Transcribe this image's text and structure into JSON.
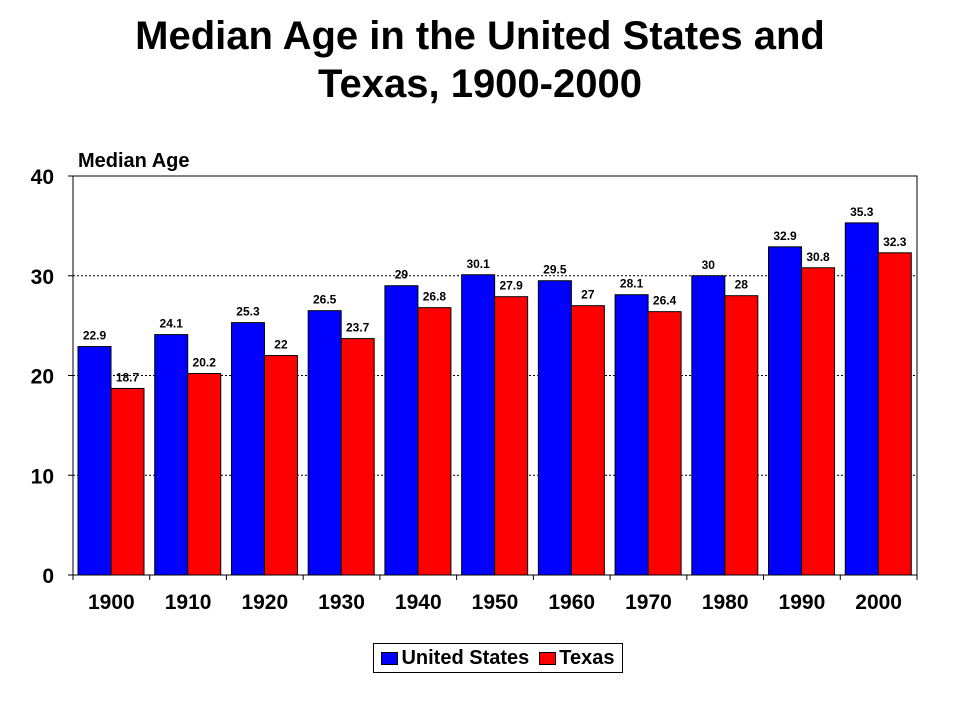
{
  "title_line1": "Median Age in the United States and",
  "title_line2": "Texas, 1900-2000",
  "chart_data": {
    "type": "bar",
    "title": "Median Age in the United States and Texas, 1900-2000",
    "ylabel": "Median Age",
    "xlabel": "",
    "ylim": [
      0,
      40
    ],
    "yticks": [
      0,
      10,
      20,
      30,
      40
    ],
    "grid": "dotted horizontal lines at 10, 20, 30",
    "legend_position": "bottom-center",
    "categories": [
      "1900",
      "1910",
      "1920",
      "1930",
      "1940",
      "1950",
      "1960",
      "1970",
      "1980",
      "1990",
      "2000"
    ],
    "series": [
      {
        "name": "United States",
        "color": "#0000ff",
        "values": [
          22.9,
          24.1,
          25.3,
          26.5,
          29,
          30.1,
          29.5,
          28.1,
          30,
          32.9,
          35.3
        ]
      },
      {
        "name": "Texas",
        "color": "#ff0000",
        "values": [
          18.7,
          20.2,
          22,
          23.7,
          26.8,
          27.9,
          27,
          26.4,
          28,
          30.8,
          32.3
        ]
      }
    ]
  }
}
